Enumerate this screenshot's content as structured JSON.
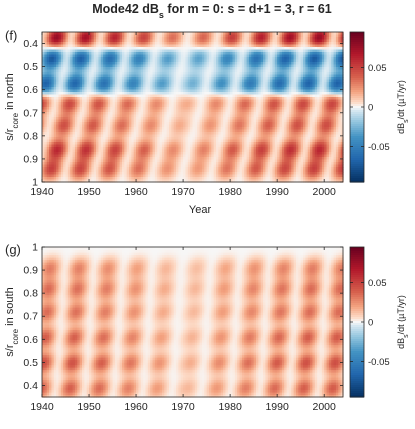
{
  "figure": {
    "title_main": "Mode42 dB",
    "title_sub": "s",
    "title_rest": " for m = 0: s = d+1 = 3, r = 61"
  },
  "chart_data": [
    {
      "type": "heatmap",
      "panel_label": "(f)",
      "xlabel": "Year",
      "ylabel_main": "s/r",
      "ylabel_sub": "core",
      "ylabel_rest": "  in north",
      "x_ticks": [
        1940,
        1950,
        1960,
        1970,
        1980,
        1990,
        2000
      ],
      "xlim": [
        1940,
        2004
      ],
      "y_ticks": [
        "0.4",
        "0.5",
        "0.6",
        "0.7",
        "0.8",
        "0.9",
        "1"
      ],
      "ylim": [
        0.35,
        1.0
      ],
      "y_reversed": true,
      "colorbar": {
        "ticks": [
          "0.05",
          "0",
          "-0.05"
        ],
        "tick_values": [
          0.05,
          0,
          -0.05
        ],
        "range": [
          -0.095,
          0.095
        ],
        "label_main": "dB",
        "label_sub": "s",
        "label_rest": "/dt (µT/yr)"
      },
      "bands": [
        {
          "s": 0.375,
          "amp": 0.08,
          "phase": 0.0
        },
        {
          "s": 0.465,
          "amp": -0.075,
          "phase": 0.2
        },
        {
          "s": 0.575,
          "amp": -0.07,
          "phase": 0.5
        },
        {
          "s": 0.66,
          "amp": 0.05,
          "phase": 0.9
        },
        {
          "s": 0.755,
          "amp": 0.045,
          "phase": 1.3
        },
        {
          "s": 0.86,
          "amp": 0.06,
          "phase": 1.8
        },
        {
          "s": 0.945,
          "amp": 0.05,
          "phase": 2.3
        }
      ]
    },
    {
      "type": "heatmap",
      "panel_label": "(g)",
      "xlabel": "",
      "ylabel_main": "s/r",
      "ylabel_sub": "core",
      "ylabel_rest": "  in south",
      "x_ticks": [
        1940,
        1950,
        1960,
        1970,
        1980,
        1990,
        2000
      ],
      "xlim": [
        1940,
        2004
      ],
      "y_ticks": [
        "1",
        "0.9",
        "0.8",
        "0.7",
        "0.6",
        "0.5",
        "0.4"
      ],
      "ylim": [
        0.35,
        1.0
      ],
      "y_reversed": false,
      "colorbar": {
        "ticks": [
          "0.05",
          "0",
          "-0.05"
        ],
        "tick_values": [
          0.05,
          0,
          -0.05
        ],
        "range": [
          -0.095,
          0.095
        ],
        "label_main": "dB",
        "label_sub": "s",
        "label_rest": "/dt (µT/yr)"
      },
      "bands": [
        {
          "s": 0.39,
          "amp": 0.04,
          "phase": 0.3
        },
        {
          "s": 0.5,
          "amp": 0.045,
          "phase": 0.8
        },
        {
          "s": 0.61,
          "amp": 0.04,
          "phase": 1.4
        },
        {
          "s": 0.72,
          "amp": 0.035,
          "phase": 2.0
        },
        {
          "s": 0.82,
          "amp": 0.035,
          "phase": 2.6
        },
        {
          "s": 0.91,
          "amp": 0.03,
          "phase": 3.1
        }
      ]
    }
  ]
}
